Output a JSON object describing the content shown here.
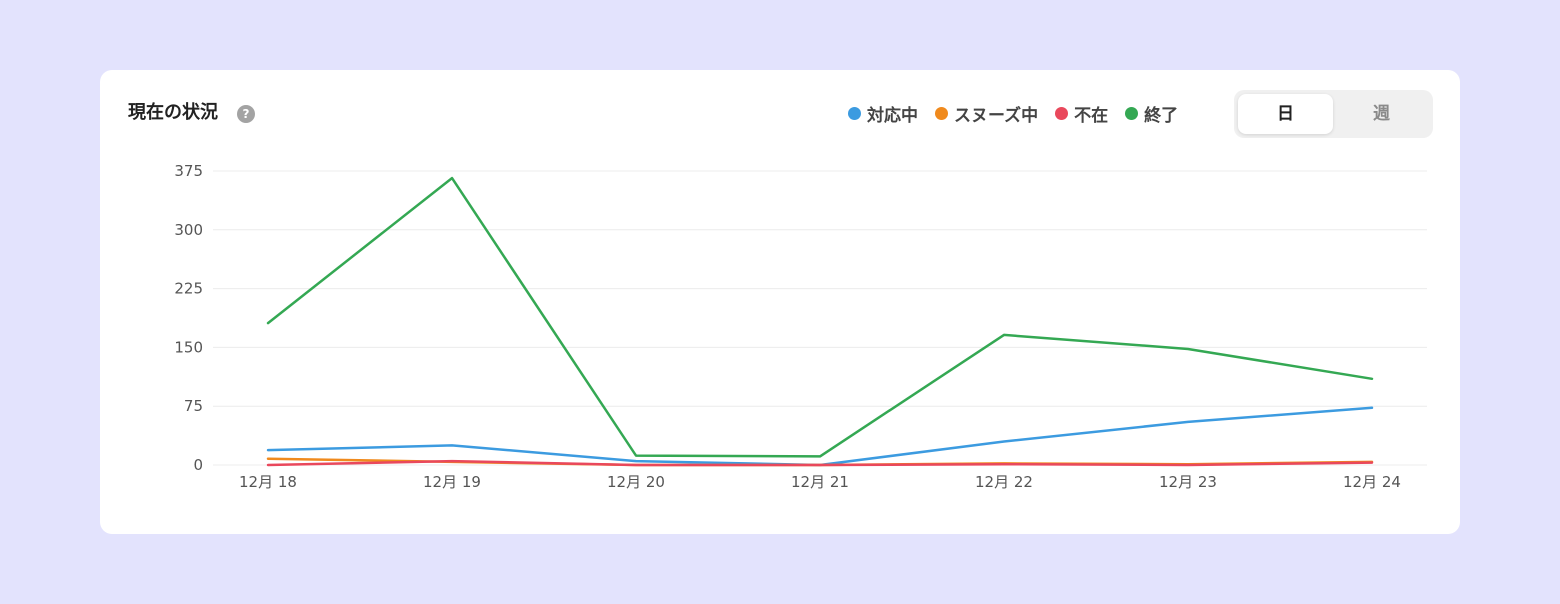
{
  "header": {
    "title": "現在の状況",
    "help_icon": "?"
  },
  "toggle": {
    "day_label": "日",
    "week_label": "週",
    "selected": "日"
  },
  "legend": [
    {
      "label": "対応中",
      "color": "#3c9be0"
    },
    {
      "label": "スヌーズ中",
      "color": "#f08a1d"
    },
    {
      "label": "不在",
      "color": "#e9485c"
    },
    {
      "label": "終了",
      "color": "#34a853"
    }
  ],
  "chart_data": {
    "type": "line",
    "categories": [
      "12月 18",
      "12月 19",
      "12月 20",
      "12月 21",
      "12月 22",
      "12月 23",
      "12月 24"
    ],
    "series": [
      {
        "name": "対応中",
        "color": "#3c9be0",
        "values": [
          19,
          25,
          5,
          0,
          30,
          55,
          73
        ]
      },
      {
        "name": "スヌーズ中",
        "color": "#f08a1d",
        "values": [
          8,
          4,
          0,
          0,
          2,
          1,
          4
        ]
      },
      {
        "name": "不在",
        "color": "#e9485c",
        "values": [
          0,
          5,
          0,
          0,
          1,
          0,
          3
        ]
      },
      {
        "name": "終了",
        "color": "#34a853",
        "values": [
          181,
          366,
          12,
          11,
          166,
          148,
          110
        ]
      }
    ],
    "yticks": [
      0,
      75,
      150,
      225,
      300,
      375
    ],
    "ylim": [
      0,
      375
    ],
    "grid": true,
    "legend_position": "top-right"
  }
}
